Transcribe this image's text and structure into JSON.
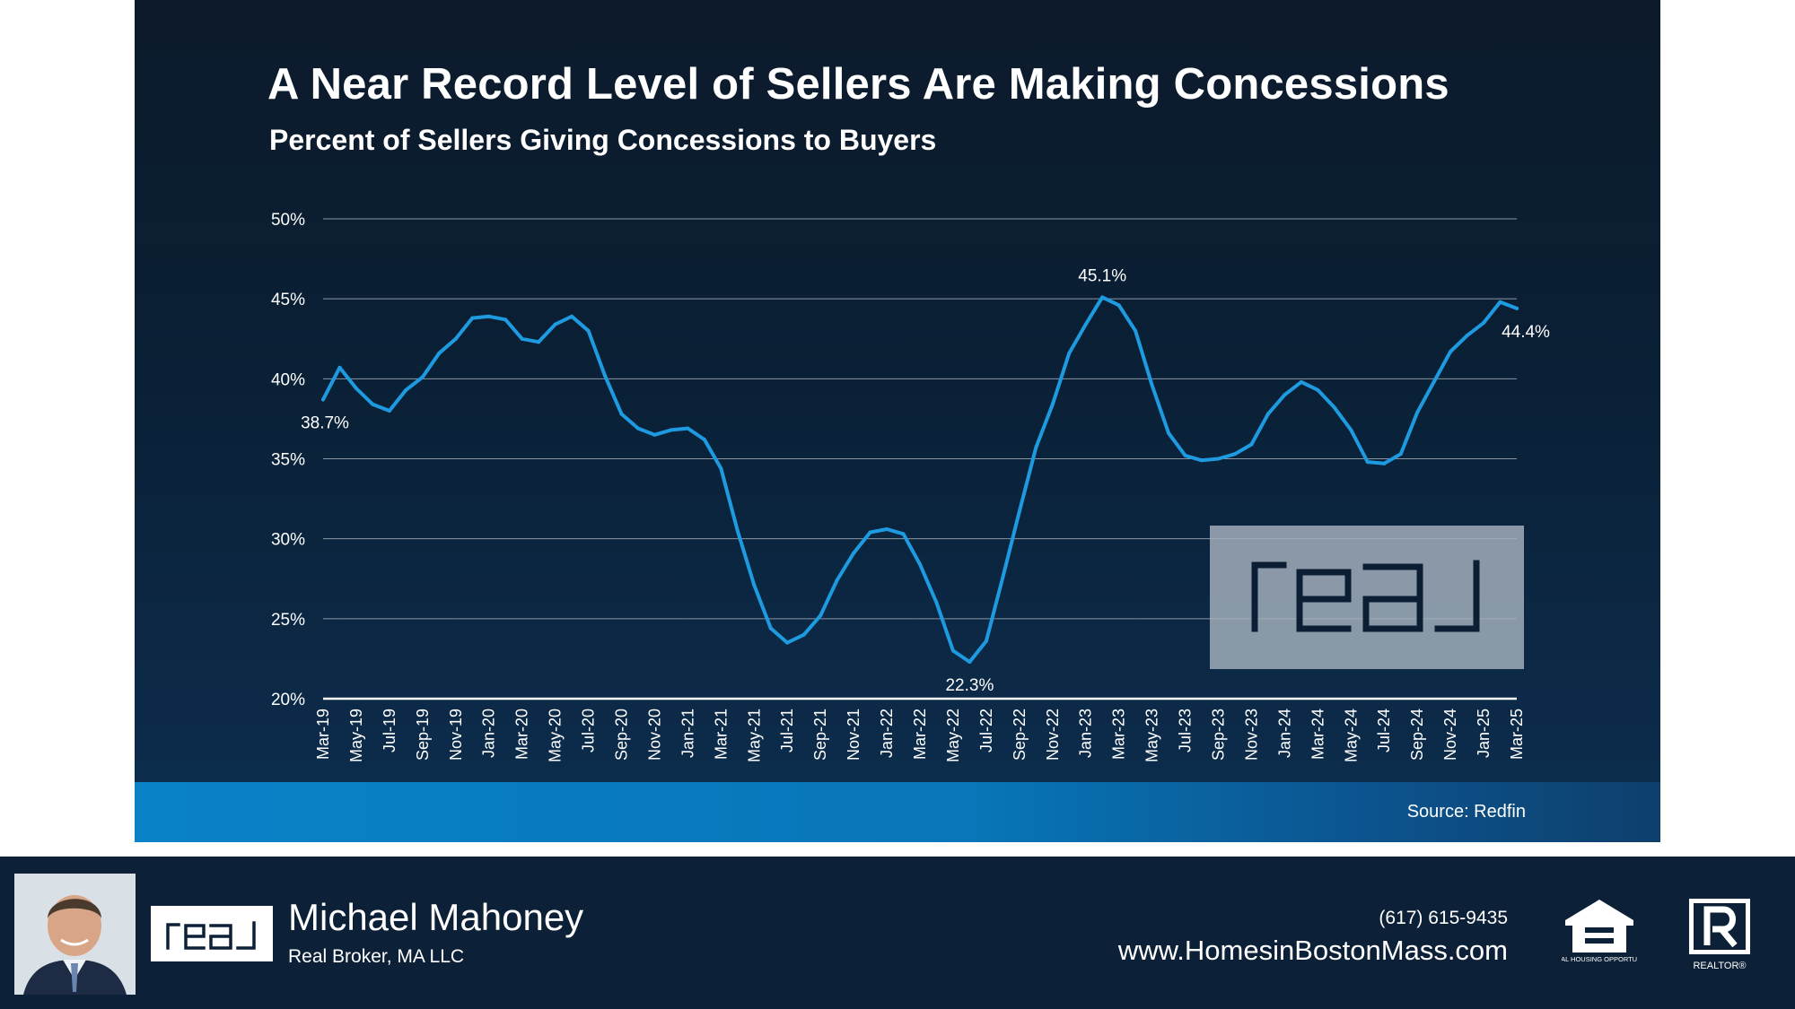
{
  "slide": {
    "title": "A Near Record Level of Sellers Are Making Concessions",
    "subtitle": "Percent of Sellers Giving Concessions to Buyers",
    "source": "Source: Redfin",
    "watermark_logo_text": "real",
    "colors": {
      "background": "#0b1e33",
      "line": "#1e9be0",
      "source_band": "#0a82c8",
      "watermark": "#a6b2be"
    }
  },
  "chart_data": {
    "type": "line",
    "title": "Percent of Sellers Giving Concessions to Buyers",
    "xlabel": "",
    "ylabel": "",
    "ylim": [
      20,
      50
    ],
    "yticks": [
      20,
      25,
      30,
      35,
      40,
      45,
      50
    ],
    "ytick_labels": [
      "20%",
      "25%",
      "30%",
      "35%",
      "40%",
      "45%",
      "50%"
    ],
    "grid": "horizontal",
    "x": [
      "Mar-19",
      "Apr-19",
      "May-19",
      "Jun-19",
      "Jul-19",
      "Aug-19",
      "Sep-19",
      "Oct-19",
      "Nov-19",
      "Dec-19",
      "Jan-20",
      "Feb-20",
      "Mar-20",
      "Apr-20",
      "May-20",
      "Jun-20",
      "Jul-20",
      "Aug-20",
      "Sep-20",
      "Oct-20",
      "Nov-20",
      "Dec-20",
      "Jan-21",
      "Feb-21",
      "Mar-21",
      "Apr-21",
      "May-21",
      "Jun-21",
      "Jul-21",
      "Aug-21",
      "Sep-21",
      "Oct-21",
      "Nov-21",
      "Dec-21",
      "Jan-22",
      "Feb-22",
      "Mar-22",
      "Apr-22",
      "May-22",
      "Jun-22",
      "Jul-22",
      "Aug-22",
      "Sep-22",
      "Oct-22",
      "Nov-22",
      "Dec-22",
      "Jan-23",
      "Feb-23",
      "Mar-23",
      "Apr-23",
      "May-23",
      "Jun-23",
      "Jul-23",
      "Aug-23",
      "Sep-23",
      "Oct-23",
      "Nov-23",
      "Dec-23",
      "Jan-24",
      "Feb-24",
      "Mar-24",
      "Apr-24",
      "May-24",
      "Jun-24",
      "Jul-24",
      "Aug-24",
      "Sep-24",
      "Oct-24",
      "Nov-24",
      "Dec-24",
      "Jan-25",
      "Feb-25",
      "Mar-25"
    ],
    "xtick_labels": [
      "Mar-19",
      "May-19",
      "Jul-19",
      "Sep-19",
      "Nov-19",
      "Jan-20",
      "Mar-20",
      "May-20",
      "Jul-20",
      "Sep-20",
      "Nov-20",
      "Jan-21",
      "Mar-21",
      "May-21",
      "Jul-21",
      "Sep-21",
      "Nov-21",
      "Jan-22",
      "Mar-22",
      "May-22",
      "Jul-22",
      "Sep-22",
      "Nov-22",
      "Jan-23",
      "Mar-23",
      "May-23",
      "Jul-23",
      "Sep-23",
      "Nov-23",
      "Jan-24",
      "Mar-24",
      "May-24",
      "Jul-24",
      "Sep-24",
      "Nov-24",
      "Jan-25",
      "Mar-25"
    ],
    "series": [
      {
        "values": [
          38.7,
          40.7,
          39.4,
          38.4,
          38.0,
          39.3,
          40.1,
          41.6,
          42.5,
          43.8,
          43.9,
          43.7,
          42.5,
          42.3,
          43.4,
          43.9,
          43.0,
          40.2,
          37.8,
          36.9,
          36.5,
          36.8,
          36.9,
          36.2,
          34.4,
          30.5,
          27.1,
          24.4,
          23.5,
          24.0,
          25.2,
          27.4,
          29.1,
          30.4,
          30.6,
          30.3,
          28.4,
          26.0,
          23.0,
          22.3,
          23.6,
          27.6,
          31.7,
          35.7,
          38.4,
          41.6,
          43.4,
          45.1,
          44.6,
          43.0,
          39.6,
          36.6,
          35.2,
          34.9,
          35.0,
          35.3,
          35.9,
          37.8,
          39.0,
          39.8,
          39.3,
          38.2,
          36.8,
          34.8,
          34.7,
          35.3,
          37.9,
          39.8,
          41.7,
          42.7,
          43.5,
          44.8,
          44.4
        ],
        "color": "#1e9be0"
      }
    ],
    "annotations": [
      {
        "x": "Mar-19",
        "value": 38.7,
        "label": "38.7%",
        "placement": "below"
      },
      {
        "x": "Feb-23",
        "value": 45.1,
        "label": "45.1%",
        "placement": "above"
      },
      {
        "x": "Jun-22",
        "value": 22.3,
        "label": "22.3%",
        "placement": "below"
      },
      {
        "x": "Mar-25",
        "value": 44.4,
        "label": "44.4%",
        "placement": "below"
      }
    ]
  },
  "footer": {
    "agent_name": "Michael Mahoney",
    "company": "Real Broker, MA LLC",
    "phone": "(617) 615-9435",
    "website": "www.HomesinBostonMass.com",
    "logo_text": "real",
    "equal_housing_text": "EQUAL HOUSING OPPORTUNITY",
    "realtor_text": "REALTOR®",
    "colors": {
      "background": "#0c2137",
      "logo_box": "#ffffff"
    }
  }
}
